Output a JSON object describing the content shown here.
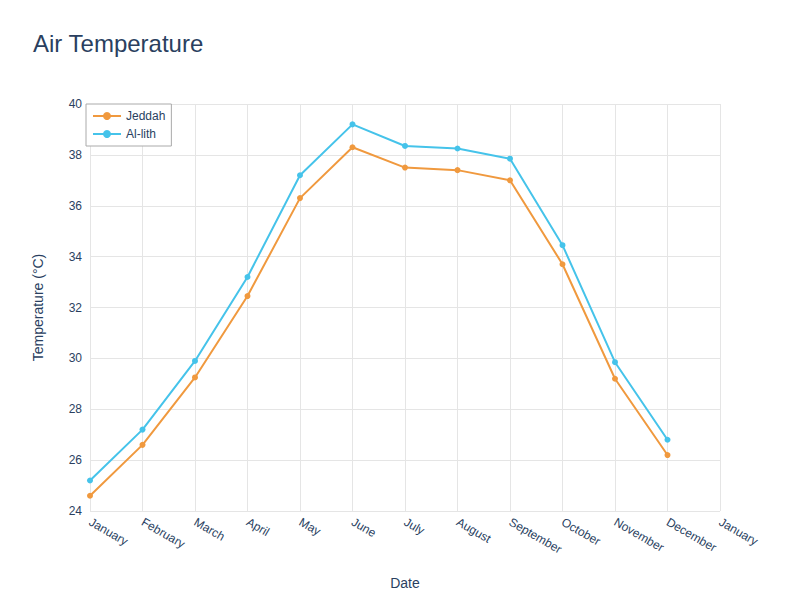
{
  "chart_data": {
    "type": "line",
    "title": "Air Temperature",
    "x_label": "Date",
    "y_label": "Temperature (°C)",
    "categories": [
      "January",
      "February",
      "March",
      "April",
      "May",
      "June",
      "July",
      "August",
      "September",
      "October",
      "November",
      "December",
      "January"
    ],
    "series": [
      {
        "name": "Jeddah",
        "color": "#f0993e",
        "marker": "circle",
        "values": [
          24.6,
          26.6,
          29.25,
          32.45,
          36.3,
          38.3,
          37.5,
          37.4,
          37.0,
          33.7,
          29.2,
          26.2,
          null
        ]
      },
      {
        "name": "Al-lith",
        "color": "#45c3ea",
        "marker": "circle",
        "values": [
          25.2,
          27.2,
          29.9,
          33.2,
          37.2,
          39.2,
          38.35,
          38.25,
          37.85,
          34.45,
          29.85,
          26.8,
          null
        ]
      }
    ],
    "ylim": [
      24,
      40
    ],
    "yticks": [
      24,
      26,
      28,
      30,
      32,
      34,
      36,
      38,
      40
    ],
    "grid": true,
    "legend": "upper left"
  }
}
